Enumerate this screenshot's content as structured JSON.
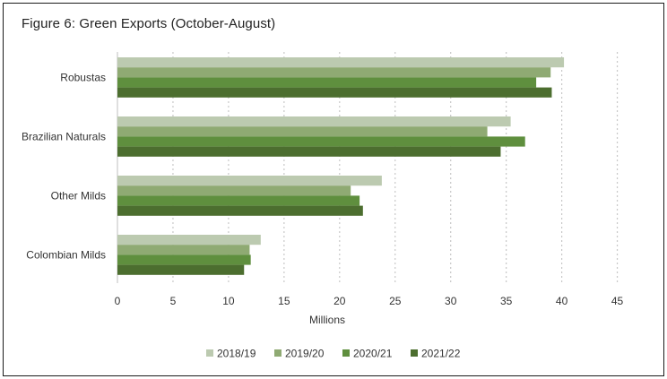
{
  "chart_data": {
    "type": "bar",
    "orientation": "horizontal",
    "title": "Figure 6: Green Exports (October-August)",
    "xlabel": "Millions",
    "ylabel": "",
    "xlim": [
      0,
      45
    ],
    "xticks": [
      0,
      5,
      10,
      15,
      20,
      25,
      30,
      35,
      40,
      45
    ],
    "grid": "vertical-dotted",
    "legend_position": "bottom",
    "categories": [
      "Robustas",
      "Brazilian Naturals",
      "Other Milds",
      "Colombian Milds"
    ],
    "series": [
      {
        "name": "2018/19",
        "color": "#bccab0",
        "values": [
          40.2,
          35.4,
          23.8,
          12.9
        ]
      },
      {
        "name": "2019/20",
        "color": "#8faa73",
        "values": [
          39.0,
          33.3,
          21.0,
          11.9
        ]
      },
      {
        "name": "2020/21",
        "color": "#5f8f3e",
        "values": [
          37.7,
          36.7,
          21.8,
          12.0
        ]
      },
      {
        "name": "2021/22",
        "color": "#4c6e2f",
        "values": [
          39.1,
          34.5,
          22.1,
          11.4
        ]
      }
    ]
  }
}
